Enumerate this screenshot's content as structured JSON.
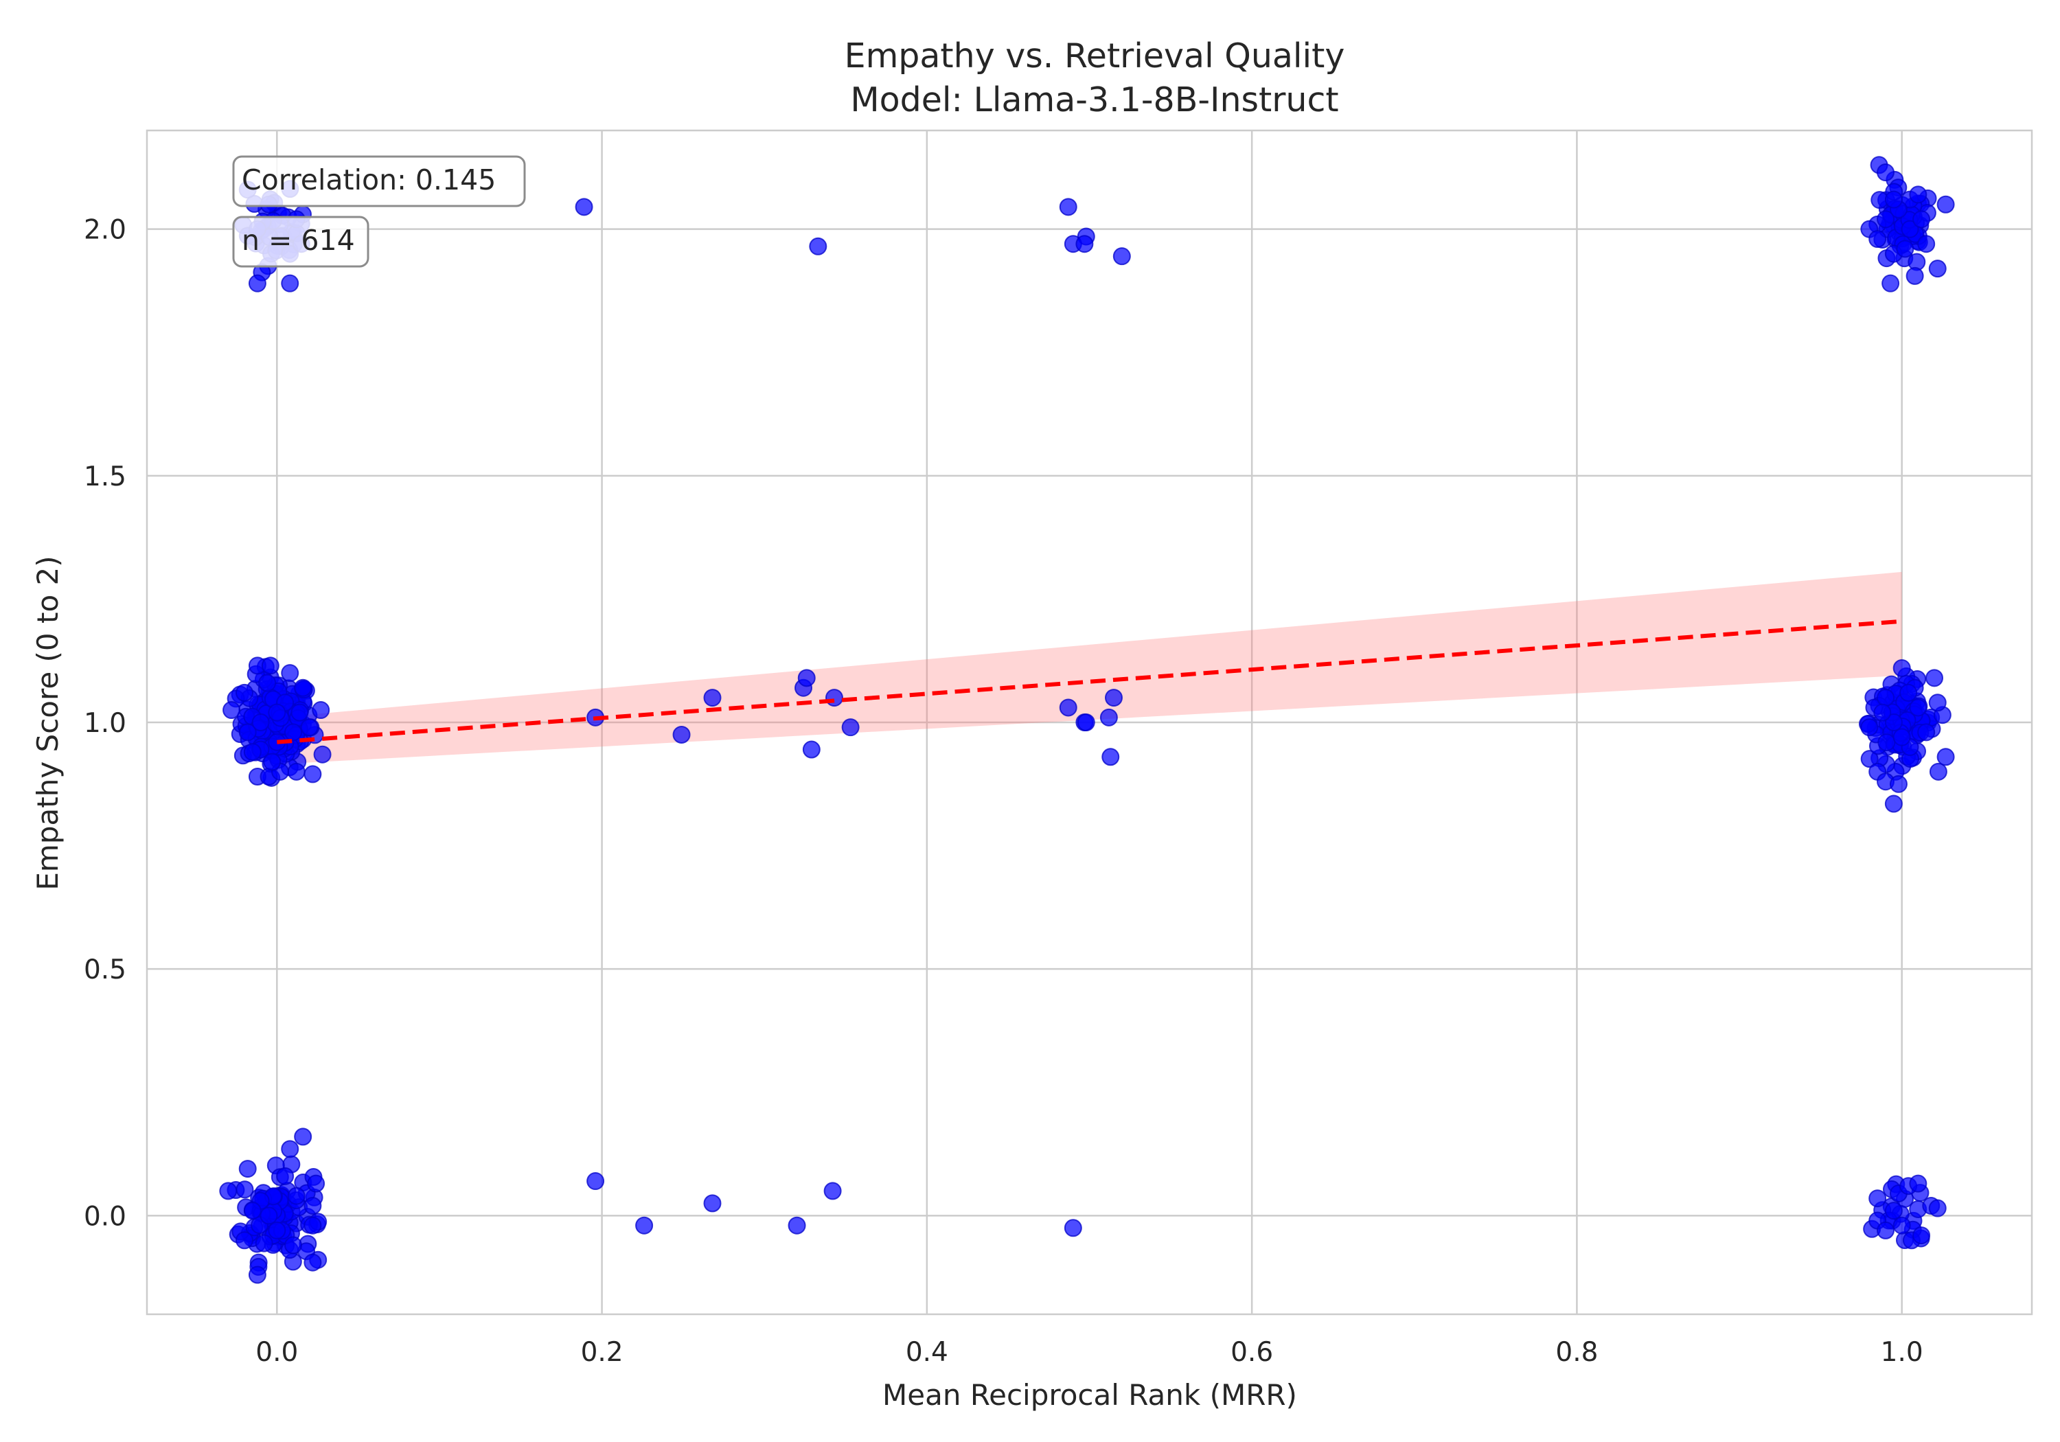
{
  "chart_data": {
    "type": "scatter",
    "title": "Empathy vs. Retrieval Quality",
    "subtitle": "Model: Llama-3.1-8B-Instruct",
    "xlabel": "Mean Reciprocal Rank (MRR)",
    "ylabel": "Empathy Score (0 to 2)",
    "xlim": [
      -0.08,
      1.08
    ],
    "ylim": [
      -0.2,
      2.2
    ],
    "xticks": [
      0.0,
      0.2,
      0.4,
      0.6,
      0.8,
      1.0
    ],
    "yticks": [
      0.0,
      0.5,
      1.0,
      1.5,
      2.0
    ],
    "xtick_labels": [
      "0.0",
      "0.2",
      "0.4",
      "0.6",
      "0.8",
      "1.0"
    ],
    "ytick_labels": [
      "0.0",
      "0.5",
      "1.0",
      "1.5",
      "2.0"
    ],
    "grid": true,
    "colors": {
      "points": "#0000ff",
      "trend": "#ff0000",
      "band": "#ffb3b3"
    },
    "annotations": {
      "correlation": "Correlation: 0.145",
      "n": "n = 614"
    },
    "trend_line": {
      "x": [
        0.0,
        1.0
      ],
      "y": [
        0.96,
        1.205
      ],
      "ci_lower": [
        0.915,
        1.095
      ],
      "ci_upper": [
        1.01,
        1.305
      ],
      "style": "dashed"
    },
    "points": [
      [
        0.189,
        2.045
      ],
      [
        0.333,
        1.965
      ],
      [
        0.487,
        2.045
      ],
      [
        0.498,
        1.985
      ],
      [
        0.49,
        1.97
      ],
      [
        0.497,
        1.97
      ],
      [
        0.52,
        1.945
      ],
      [
        -0.012,
        2.0
      ],
      [
        0.008,
        1.95
      ],
      [
        -0.005,
        2.05
      ],
      [
        0.012,
        2.02
      ],
      [
        -0.012,
        1.89
      ],
      [
        0.008,
        1.89
      ],
      [
        0.015,
        1.97
      ],
      [
        -0.018,
        2.08
      ],
      [
        0.986,
        2.13
      ],
      [
        0.99,
        2.115
      ],
      [
        0.98,
        2.0
      ],
      [
        0.995,
        1.95
      ],
      [
        1.005,
        2.06
      ],
      [
        1.01,
        2.07
      ],
      [
        0.993,
        1.89
      ],
      [
        1.022,
        1.92
      ],
      [
        1.027,
        2.05
      ],
      [
        1.008,
        1.905
      ],
      [
        1.015,
        1.97
      ],
      [
        0.998,
        2.04
      ],
      [
        1.002,
        1.96
      ],
      [
        0.985,
        1.98
      ],
      [
        0.99,
        2.02
      ],
      [
        1.005,
        2.0
      ],
      [
        0.995,
        2.06
      ],
      [
        1.012,
        2.02
      ],
      [
        0.196,
        1.01
      ],
      [
        0.249,
        0.975
      ],
      [
        0.268,
        1.05
      ],
      [
        0.324,
        1.07
      ],
      [
        0.326,
        1.09
      ],
      [
        0.329,
        0.945
      ],
      [
        0.343,
        1.05
      ],
      [
        0.353,
        0.99
      ],
      [
        0.487,
        1.03
      ],
      [
        0.497,
        1.0
      ],
      [
        0.498,
        1.0
      ],
      [
        0.512,
        1.01
      ],
      [
        0.513,
        0.93
      ],
      [
        0.515,
        1.05
      ],
      [
        -0.028,
        1.025
      ],
      [
        -0.012,
        1.115
      ],
      [
        -0.004,
        1.115
      ],
      [
        -0.012,
        0.89
      ],
      [
        -0.005,
        0.89
      ],
      [
        0.002,
        0.9
      ],
      [
        0.012,
        0.9
      ],
      [
        0.022,
        0.895
      ],
      [
        0.028,
        0.935
      ],
      [
        0.027,
        1.025
      ],
      [
        0.02,
        0.99
      ],
      [
        0.016,
        1.07
      ],
      [
        -0.018,
        0.98
      ],
      [
        -0.02,
        1.06
      ],
      [
        -0.01,
        1.0
      ],
      [
        0.0,
        0.96
      ],
      [
        0.005,
        1.04
      ],
      [
        0.01,
        0.98
      ],
      [
        -0.006,
        1.08
      ],
      [
        0.0,
        1.02
      ],
      [
        0.008,
        1.1
      ],
      [
        -0.015,
        0.94
      ],
      [
        0.014,
        1.02
      ],
      [
        -0.003,
        0.92
      ],
      [
        0.983,
        1.03
      ],
      [
        0.985,
        0.9
      ],
      [
        0.99,
        0.88
      ],
      [
        0.995,
        0.835
      ],
      [
        0.998,
        0.875
      ],
      [
        1.0,
        1.11
      ],
      [
        1.008,
        1.07
      ],
      [
        1.02,
        1.09
      ],
      [
        1.027,
        0.93
      ],
      [
        1.025,
        1.015
      ],
      [
        1.022,
        1.04
      ],
      [
        0.98,
        0.99
      ],
      [
        0.995,
        1.0
      ],
      [
        1.005,
        0.95
      ],
      [
        1.01,
        1.03
      ],
      [
        0.99,
        1.05
      ],
      [
        1.0,
        0.97
      ],
      [
        1.015,
        0.98
      ],
      [
        0.988,
        1.02
      ],
      [
        1.004,
        1.06
      ],
      [
        -0.03,
        0.05
      ],
      [
        -0.018,
        0.095
      ],
      [
        -0.012,
        -0.12
      ],
      [
        0.016,
        0.16
      ],
      [
        0.008,
        0.135
      ],
      [
        0.022,
        -0.095
      ],
      [
        0.024,
        0.065
      ],
      [
        0.022,
        0.02
      ],
      [
        0.022,
        -0.02
      ],
      [
        -0.02,
        -0.05
      ],
      [
        -0.01,
        0.03
      ],
      [
        0.0,
        -0.03
      ],
      [
        0.005,
        0.08
      ],
      [
        0.01,
        -0.06
      ],
      [
        -0.005,
        0.0
      ],
      [
        0.012,
        0.04
      ],
      [
        -0.015,
        0.01
      ],
      [
        0.196,
        0.07
      ],
      [
        0.226,
        -0.02
      ],
      [
        0.268,
        0.025
      ],
      [
        0.32,
        -0.02
      ],
      [
        0.342,
        0.05
      ],
      [
        0.49,
        -0.025
      ],
      [
        0.985,
        0.035
      ],
      [
        0.985,
        -0.01
      ],
      [
        0.99,
        -0.03
      ],
      [
        0.998,
        0.045
      ],
      [
        1.004,
        0.06
      ],
      [
        1.01,
        0.065
      ],
      [
        1.006,
        -0.05
      ],
      [
        1.012,
        -0.04
      ],
      [
        1.018,
        0.02
      ],
      [
        1.022,
        0.015
      ],
      [
        0.995,
        0.01
      ],
      [
        1.0,
        -0.02
      ]
    ],
    "clusters": [
      {
        "x": 0.0,
        "y": 1.0,
        "count": 150,
        "spread_x": 0.011,
        "spread_y": 0.045
      },
      {
        "x": 0.0,
        "y": 0.0,
        "count": 90,
        "spread_x": 0.011,
        "spread_y": 0.045
      },
      {
        "x": 0.0,
        "y": 2.0,
        "count": 35,
        "spread_x": 0.009,
        "spread_y": 0.035
      },
      {
        "x": 1.0,
        "y": 1.0,
        "count": 90,
        "spread_x": 0.01,
        "spread_y": 0.04
      },
      {
        "x": 1.0,
        "y": 2.0,
        "count": 45,
        "spread_x": 0.01,
        "spread_y": 0.04
      },
      {
        "x": 1.0,
        "y": 0.0,
        "count": 15,
        "spread_x": 0.008,
        "spread_y": 0.03
      }
    ]
  }
}
